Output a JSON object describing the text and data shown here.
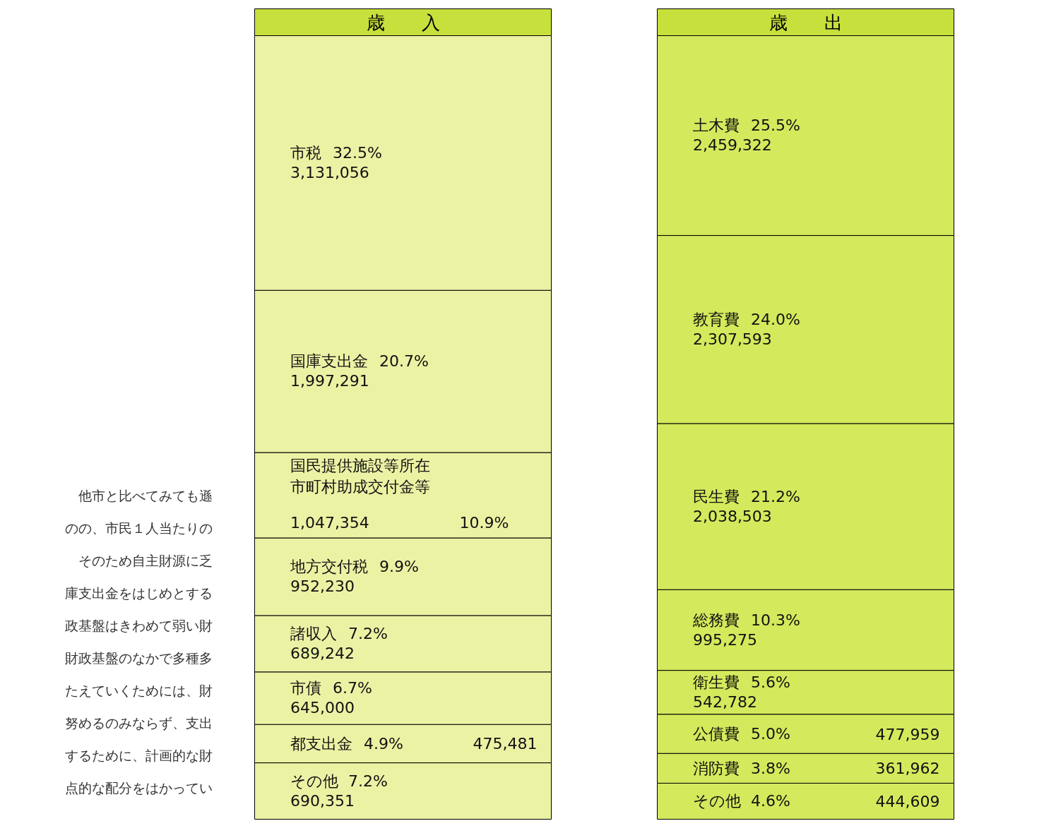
{
  "chart_data": [
    {
      "type": "bar",
      "stacked": true,
      "title": "歳　　入",
      "categories": [
        null
      ],
      "series": [
        {
          "name": "その他",
          "color": "#ebf2a4",
          "values": [
            7.2
          ],
          "value_labels": [
            "7.2%"
          ]
        },
        {
          "name": "都支出金",
          "color": "#ebf2a4",
          "values": [
            4.9
          ],
          "value_labels": [
            "4.9%"
          ]
        },
        {
          "name": "市債",
          "color": "#ebf2a4",
          "values": [
            6.7
          ],
          "value_labels": [
            "6.7%"
          ]
        },
        {
          "name": "諸収入",
          "color": "#ebf2a4",
          "values": [
            7.2
          ],
          "value_labels": [
            "7.2%"
          ]
        },
        {
          "name": "地方交付税",
          "color": "#ebf2a4",
          "values": [
            9.9
          ],
          "value_labels": [
            "9.9%"
          ]
        },
        {
          "name": "国民提供施設等所在市町村助成交付金等",
          "color": "#ebf2a4",
          "values": [
            10.9
          ],
          "value_labels": [
            "10.9%"
          ]
        },
        {
          "name": "国庫支出金",
          "color": "#ebf2a4",
          "values": [
            20.7
          ],
          "value_labels": [
            "20.7%"
          ]
        },
        {
          "name": "市税",
          "color": "#ebf2a4",
          "values": [
            32.5
          ],
          "value_labels": [
            "32.5%"
          ]
        }
      ],
      "annotations": [
        "690,351",
        "475,481",
        "645,000",
        "689,242",
        "952,230",
        "1,047,354",
        "1,997,291",
        "3,131,056",
        "他市と比べてみても遜",
        "のの、市民１人当たりの",
        "そのため自主財源に乏",
        "庫支出金をはじめとする",
        "政基盤はきわめて弱い財",
        "財政基盤のなかで多種多",
        "たえていくためには、財",
        "努めるのみならず、支出",
        "するために、計画的な財",
        "点的な配分をはかってい"
      ]
    },
    {
      "type": "bar",
      "stacked": true,
      "title": "歳　　出",
      "categories": [
        null
      ],
      "series": [
        {
          "name": "その他",
          "color": "#d4e95c",
          "values": [
            4.6
          ],
          "value_labels": [
            "4.6%"
          ]
        },
        {
          "name": "消防費",
          "color": "#d4e95c",
          "values": [
            3.8
          ],
          "value_labels": [
            "3.8%"
          ]
        },
        {
          "name": "公債費",
          "color": "#d4e95c",
          "values": [
            5.0
          ],
          "value_labels": [
            "5.0%"
          ]
        },
        {
          "name": "衛生費",
          "color": "#d4e95c",
          "values": [
            5.6
          ],
          "value_labels": [
            "5.6%"
          ]
        },
        {
          "name": "総務費",
          "color": "#d4e95c",
          "values": [
            10.3
          ],
          "value_labels": [
            "10.3%"
          ]
        },
        {
          "name": "民生費",
          "color": "#d4e95c",
          "values": [
            21.2
          ],
          "value_labels": [
            "21.2%"
          ]
        },
        {
          "name": "教育費",
          "color": "#d4e95c",
          "values": [
            24.0
          ],
          "value_labels": [
            "24.0%"
          ]
        },
        {
          "name": "土木費",
          "color": "#d4e95c",
          "values": [
            25.5
          ],
          "value_labels": [
            "25.5%"
          ]
        }
      ],
      "annotations": [
        "444,609",
        "361,962",
        "477,959",
        "542,782",
        "995,275",
        "2,038,503",
        "2,307,593",
        "2,459,322"
      ]
    }
  ]
}
